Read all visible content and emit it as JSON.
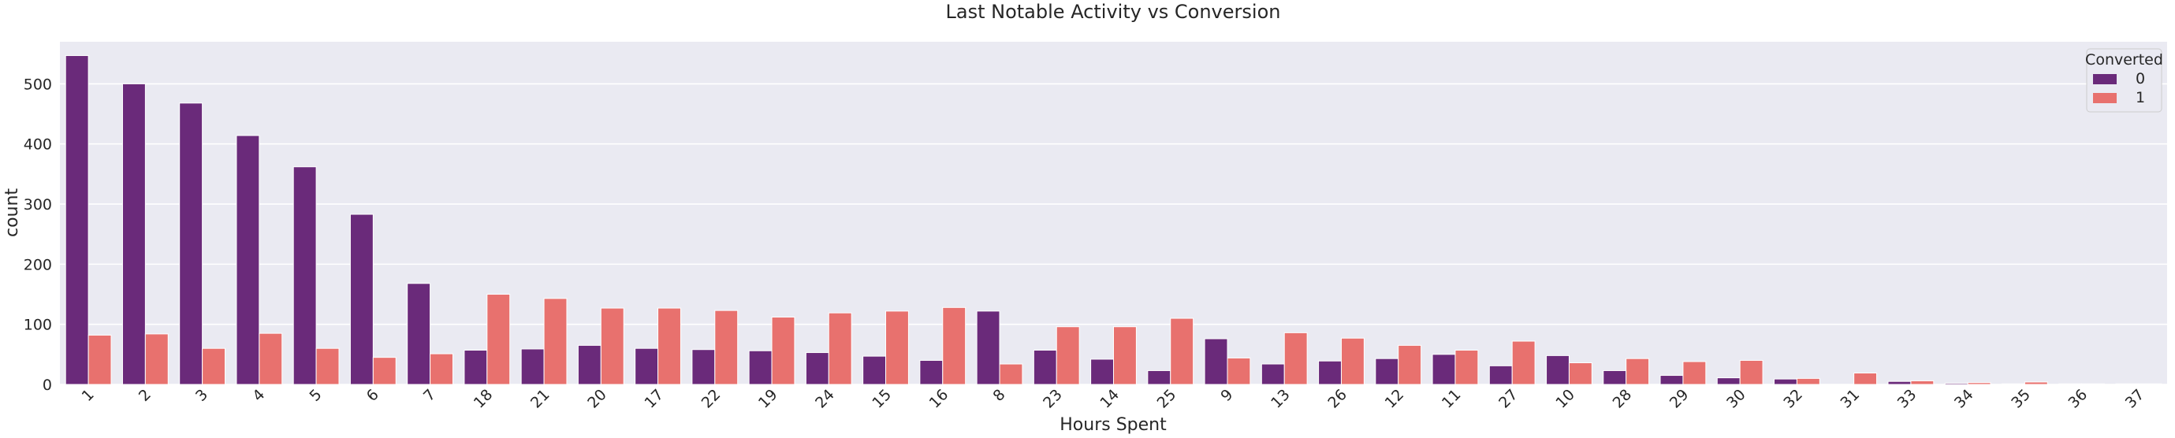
{
  "chart_data": {
    "type": "bar",
    "title": "Last Notable Activity vs Conversion",
    "xlabel": "Hours Spent",
    "ylabel": "count",
    "ylim": [
      0,
      570
    ],
    "yticks": [
      0,
      100,
      200,
      300,
      400,
      500
    ],
    "grid": true,
    "legend": {
      "title": "Converted",
      "position": "top-right"
    },
    "categories": [
      "1",
      "2",
      "3",
      "4",
      "5",
      "6",
      "7",
      "18",
      "21",
      "20",
      "17",
      "22",
      "19",
      "24",
      "15",
      "16",
      "8",
      "23",
      "14",
      "25",
      "9",
      "13",
      "26",
      "12",
      "11",
      "27",
      "10",
      "28",
      "29",
      "30",
      "32",
      "31",
      "33",
      "34",
      "35",
      "36",
      "37"
    ],
    "series": [
      {
        "name": "0",
        "color": "#6a2a7a",
        "values": [
          547,
          500,
          468,
          414,
          362,
          283,
          168,
          57,
          59,
          65,
          60,
          58,
          56,
          53,
          47,
          40,
          122,
          57,
          42,
          23,
          76,
          34,
          39,
          43,
          50,
          31,
          48,
          23,
          15,
          11,
          9,
          0,
          5,
          2,
          1,
          1,
          1
        ]
      },
      {
        "name": "1",
        "color": "#e8716e",
        "values": [
          82,
          84,
          60,
          85,
          60,
          45,
          51,
          150,
          143,
          127,
          127,
          123,
          112,
          119,
          122,
          128,
          34,
          96,
          96,
          110,
          44,
          86,
          77,
          65,
          57,
          72,
          36,
          43,
          38,
          40,
          10,
          19,
          6,
          3,
          4,
          1,
          1
        ]
      }
    ]
  }
}
